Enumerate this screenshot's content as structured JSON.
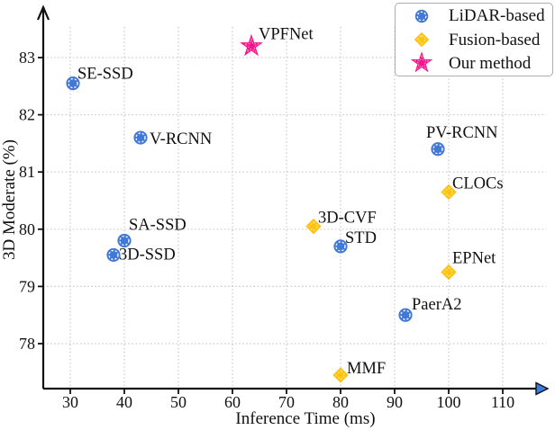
{
  "chart_data": {
    "type": "scatter",
    "title": "",
    "xlabel": "Inference Time (ms)",
    "ylabel": "3D Moderate (%)",
    "x_ticks": [
      30,
      40,
      50,
      60,
      70,
      80,
      90,
      100,
      110
    ],
    "y_ticks": [
      78,
      79,
      80,
      81,
      82,
      83
    ],
    "xlim": [
      25,
      116
    ],
    "ylim": [
      77.2,
      83.7
    ],
    "grid": true,
    "grid_style": "dotted",
    "colors": {
      "lidar": "#4379D6",
      "fusion": "#FFC20E",
      "ours": "#F3158C",
      "axis": "#111111",
      "gridline": "#c9c9c9",
      "x_arrow_fill": "#3B7DD8"
    },
    "legend": {
      "position": "top-right",
      "entries": [
        {
          "label": "LiDAR-based",
          "marker": "circle",
          "color": "#4379D6"
        },
        {
          "label": "Fusion-based",
          "marker": "diamond",
          "color": "#FFC20E"
        },
        {
          "label": "Our method",
          "marker": "star",
          "color": "#F3158C"
        }
      ]
    },
    "series": [
      {
        "name": "LiDAR-based",
        "marker": "circle",
        "color": "#4379D6",
        "points": [
          {
            "label": "SE-SSD",
            "x": 30.5,
            "y": 82.55,
            "label_dx": 5,
            "label_dy": -5
          },
          {
            "label": "V-RCNN",
            "x": 43,
            "y": 81.6,
            "label_dx": 10,
            "label_dy": 7
          },
          {
            "label": "SA-SSD",
            "x": 40,
            "y": 79.8,
            "label_dx": 5,
            "label_dy": -12
          },
          {
            "label": "3D-SSD",
            "x": 38,
            "y": 79.55,
            "label_dx": 6,
            "label_dy": 5
          },
          {
            "label": "STD",
            "x": 80,
            "y": 79.7,
            "label_dx": 5,
            "label_dy": -4
          },
          {
            "label": "PV-RCNN",
            "x": 98,
            "y": 81.4,
            "label_dx": -13,
            "label_dy": -13
          },
          {
            "label": "PaerA2",
            "x": 92,
            "y": 78.5,
            "label_dx": 7,
            "label_dy": -6
          }
        ]
      },
      {
        "name": "Fusion-based",
        "marker": "diamond",
        "color": "#FFC20E",
        "points": [
          {
            "label": "3D-CVF",
            "x": 75,
            "y": 80.05,
            "label_dx": 5,
            "label_dy": -4
          },
          {
            "label": "CLOCs",
            "x": 100,
            "y": 80.65,
            "label_dx": 4,
            "label_dy": -4
          },
          {
            "label": "EPNet",
            "x": 100,
            "y": 79.25,
            "label_dx": 4,
            "label_dy": -10
          },
          {
            "label": "MMF",
            "x": 80,
            "y": 77.45,
            "label_dx": 7,
            "label_dy": -2
          }
        ]
      },
      {
        "name": "Our method",
        "marker": "star",
        "color": "#F3158C",
        "points": [
          {
            "label": "VPFNet",
            "x": 63.5,
            "y": 83.2,
            "label_dx": 8,
            "label_dy": -8
          }
        ]
      }
    ]
  }
}
